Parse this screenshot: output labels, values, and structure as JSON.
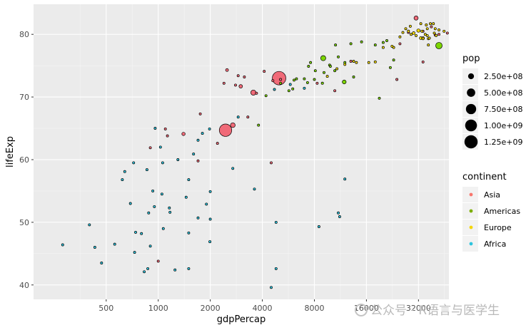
{
  "chart_data": {
    "type": "scatter",
    "title": "",
    "xlabel": "gdpPercap",
    "ylabel": "lifeExp",
    "x_scale": "log2",
    "xlim": [
      190,
      48000
    ],
    "ylim": [
      37.7,
      84.8
    ],
    "x_ticks": [
      500,
      1000,
      2000,
      4000,
      8000,
      16000,
      32000
    ],
    "x_tick_labels": [
      "500",
      "1000",
      "2000",
      "4000",
      "8000",
      "16000",
      "32000"
    ],
    "y_ticks": [
      40,
      50,
      60,
      70,
      80
    ],
    "y_tick_labels": [
      "40",
      "50",
      "60",
      "70",
      "80"
    ],
    "grid": true,
    "legend_position": "right",
    "size_legend": {
      "title": "pop",
      "entries": [
        {
          "label": "2.50e+08",
          "value": 250000000
        },
        {
          "label": "5.00e+08",
          "value": 500000000
        },
        {
          "label": "7.50e+08",
          "value": 750000000
        },
        {
          "label": "1.00e+09",
          "value": 1000000000
        },
        {
          "label": "1.25e+09",
          "value": 1250000000
        }
      ]
    },
    "color_legend": {
      "title": "continent",
      "entries": [
        {
          "label": "Asia",
          "color": "#F8766D"
        },
        {
          "label": "Americas",
          "color": "#7CAE00"
        },
        {
          "label": "Europe",
          "color": "#F4D60B"
        },
        {
          "label": "Africa",
          "color": "#2EC4DE"
        }
      ]
    },
    "series": [
      {
        "name": "Asia",
        "color": "#F06A78",
        "points": [
          [
            5000,
            73.0,
            1318000000
          ],
          [
            2450,
            64.7,
            1110000000
          ],
          [
            2700,
            65.5,
            160000000
          ],
          [
            1400,
            64.1,
            80000000
          ],
          [
            3550,
            70.7,
            190000000
          ],
          [
            3000,
            71.7,
            90000000
          ],
          [
            2500,
            74.3,
            60000000
          ],
          [
            2900,
            73.4,
            30000000
          ],
          [
            3150,
            73.2,
            20000000
          ],
          [
            2800,
            71.9,
            10000000
          ],
          [
            4100,
            74.1,
            10000000
          ],
          [
            3700,
            70.6,
            10000000
          ],
          [
            2400,
            72.2,
            5000000
          ],
          [
            4600,
            72.6,
            10000000
          ],
          [
            1750,
            67.3,
            5000000
          ],
          [
            1130,
            63.8,
            5000000
          ],
          [
            900,
            61.9,
            5000000
          ],
          [
            1000,
            43.8,
            30000000
          ],
          [
            1100,
            64.9,
            5000000
          ],
          [
            1700,
            59.8,
            5000000
          ],
          [
            2200,
            62.6,
            5000000
          ],
          [
            3300,
            66.8,
            5000000
          ],
          [
            4500,
            59.5,
            5000000
          ],
          [
            5100,
            72.8,
            5000000
          ],
          [
            10500,
            71.0,
            30000000
          ],
          [
            13000,
            75.7,
            30000000
          ],
          [
            24000,
            72.8,
            5000000
          ],
          [
            25000,
            78.5,
            30000000
          ],
          [
            28000,
            80.3,
            5000000
          ],
          [
            31000,
            82.6,
            127000000
          ],
          [
            34000,
            80.5,
            30000000
          ],
          [
            40000,
            79.9,
            5000000
          ],
          [
            38000,
            81.2,
            5000000
          ],
          [
            34000,
            75.6,
            5000000
          ],
          [
            42000,
            80.0,
            5000000
          ],
          [
            47000,
            80.2,
            5000000
          ],
          [
            8300,
            72.2,
            5000000
          ]
        ]
      },
      {
        "name": "Americas",
        "color": "#7CD600",
        "points": [
          [
            42000,
            78.2,
            301000000
          ],
          [
            9000,
            76.2,
            190000000
          ],
          [
            11900,
            72.4,
            109000000
          ],
          [
            8900,
            72.2,
            40000000
          ],
          [
            13000,
            78.5,
            40000000
          ],
          [
            12000,
            75.5,
            20000000
          ],
          [
            10500,
            74.2,
            20000000
          ],
          [
            13500,
            73.2,
            20000000
          ],
          [
            15000,
            78.8,
            30000000
          ],
          [
            11000,
            76.4,
            10000000
          ],
          [
            7000,
            72.9,
            20000000
          ],
          [
            5700,
            71.0,
            10000000
          ],
          [
            6000,
            71.3,
            10000000
          ],
          [
            3800,
            65.5,
            10000000
          ],
          [
            5100,
            72.2,
            5000000
          ],
          [
            8000,
            72.8,
            5000000
          ],
          [
            9800,
            75.1,
            5000000
          ],
          [
            7300,
            72.3,
            5000000
          ],
          [
            6300,
            72.9,
            5000000
          ],
          [
            7400,
            74.9,
            5000000
          ],
          [
            7600,
            75.5,
            5000000
          ],
          [
            9100,
            73.9,
            5000000
          ],
          [
            18000,
            78.3,
            5000000
          ],
          [
            20000,
            78.7,
            5000000
          ],
          [
            21000,
            79.0,
            5000000
          ],
          [
            19000,
            69.8,
            5000000
          ],
          [
            10600,
            78.3,
            5000000
          ],
          [
            4200,
            70.2,
            5000000
          ],
          [
            8100,
            74.2,
            5000000
          ],
          [
            9900,
            74.9,
            5000000
          ],
          [
            6100,
            72.7,
            5000000
          ],
          [
            22000,
            74.7,
            5000000
          ],
          [
            23000,
            75.9,
            5000000
          ]
        ]
      },
      {
        "name": "Europe",
        "color": "#F2DA00",
        "points": [
          [
            32000,
            80.6,
            80000000
          ],
          [
            30000,
            80.2,
            60000000
          ],
          [
            33000,
            79.4,
            60000000
          ],
          [
            34000,
            79.4,
            60000000
          ],
          [
            28000,
            80.5,
            40000000
          ],
          [
            18000,
            75.6,
            40000000
          ],
          [
            23000,
            77.9,
            10000000
          ],
          [
            33500,
            80.5,
            5000000
          ],
          [
            36000,
            79.8,
            10000000
          ],
          [
            37500,
            81.7,
            5000000
          ],
          [
            36000,
            80.9,
            5000000
          ],
          [
            36500,
            79.3,
            5000000
          ],
          [
            25000,
            79.6,
            5000000
          ],
          [
            26000,
            80.3,
            5000000
          ],
          [
            28700,
            81.3,
            5000000
          ],
          [
            34000,
            79.3,
            5000000
          ],
          [
            35000,
            80.0,
            5000000
          ],
          [
            39000,
            81.7,
            5000000
          ],
          [
            40000,
            80.9,
            5000000
          ],
          [
            37000,
            79.4,
            5000000
          ],
          [
            35500,
            81.5,
            5000000
          ],
          [
            39500,
            80.2,
            5000000
          ],
          [
            33000,
            81.7,
            5000000
          ],
          [
            36500,
            78.3,
            5000000
          ],
          [
            40500,
            79.8,
            5000000
          ],
          [
            42000,
            80.7,
            5000000
          ],
          [
            45000,
            80.5,
            5000000
          ],
          [
            22500,
            78.1,
            5000000
          ],
          [
            12000,
            75.2,
            5000000
          ],
          [
            13500,
            75.7,
            5000000
          ],
          [
            10800,
            74.5,
            5000000
          ],
          [
            9500,
            73.3,
            5000000
          ],
          [
            14000,
            75.5,
            5000000
          ],
          [
            16500,
            75.5,
            5000000
          ],
          [
            20000,
            77.9,
            5000000
          ],
          [
            29000,
            80.0,
            5000000
          ],
          [
            31000,
            79.8,
            5000000
          ],
          [
            27000,
            80.9,
            5000000
          ]
        ]
      },
      {
        "name": "Africa",
        "color": "#2EC4DE",
        "points": [
          [
            280,
            46.4,
            10000000
          ],
          [
            1990,
            46.9,
            40000000
          ],
          [
            690,
            53.0,
            20000000
          ],
          [
            7000,
            71.4,
            30000000
          ],
          [
            4700,
            71.2,
            10000000
          ],
          [
            5800,
            72.0,
            5000000
          ],
          [
            950,
            52.5,
            20000000
          ],
          [
            1500,
            56.8,
            20000000
          ],
          [
            1300,
            60.0,
            10000000
          ],
          [
            1450,
            54.0,
            10000000
          ],
          [
            1700,
            63.1,
            5000000
          ],
          [
            1800,
            64.2,
            5000000
          ],
          [
            2700,
            58.6,
            5000000
          ],
          [
            3600,
            55.3,
            5000000
          ],
          [
            2000,
            54.9,
            5000000
          ],
          [
            1050,
            54.5,
            5000000
          ],
          [
            1070,
            49.0,
            5000000
          ],
          [
            880,
            51.5,
            5000000
          ],
          [
            800,
            48.2,
            5000000
          ],
          [
            740,
            48.4,
            5000000
          ],
          [
            870,
            42.6,
            5000000
          ],
          [
            830,
            42.1,
            5000000
          ],
          [
            470,
            43.5,
            5000000
          ],
          [
            430,
            46.0,
            5000000
          ],
          [
            400,
            49.6,
            5000000
          ],
          [
            620,
            56.8,
            5000000
          ],
          [
            640,
            58.1,
            5000000
          ],
          [
            860,
            58.4,
            5000000
          ],
          [
            930,
            55.0,
            5000000
          ],
          [
            1160,
            52.3,
            5000000
          ],
          [
            1170,
            51.6,
            5000000
          ],
          [
            1500,
            48.3,
            5000000
          ],
          [
            1700,
            50.7,
            5000000
          ],
          [
            2000,
            50.5,
            5000000
          ],
          [
            1250,
            42.4,
            5000000
          ],
          [
            1500,
            42.6,
            5000000
          ],
          [
            1060,
            59.5,
            5000000
          ],
          [
            900,
            46.2,
            5000000
          ],
          [
            730,
            45.2,
            5000000
          ],
          [
            560,
            46.5,
            5000000
          ],
          [
            720,
            59.5,
            5000000
          ],
          [
            4800,
            42.6,
            5000000
          ],
          [
            4500,
            39.6,
            5000000
          ],
          [
            4800,
            50.0,
            5000000
          ],
          [
            8500,
            49.3,
            5000000
          ],
          [
            11000,
            51.5,
            5000000
          ],
          [
            11200,
            50.9,
            5000000
          ],
          [
            12000,
            56.9,
            5000000
          ],
          [
            1900,
            52.9,
            5000000
          ],
          [
            960,
            65.0,
            5000000
          ],
          [
            1030,
            62.0,
            5000000
          ],
          [
            1600,
            60.9,
            5000000
          ],
          [
            2900,
            66.8,
            5000000
          ],
          [
            1980,
            64.9,
            5000000
          ]
        ]
      }
    ]
  },
  "watermark": "公众号 · R语言与医学生"
}
